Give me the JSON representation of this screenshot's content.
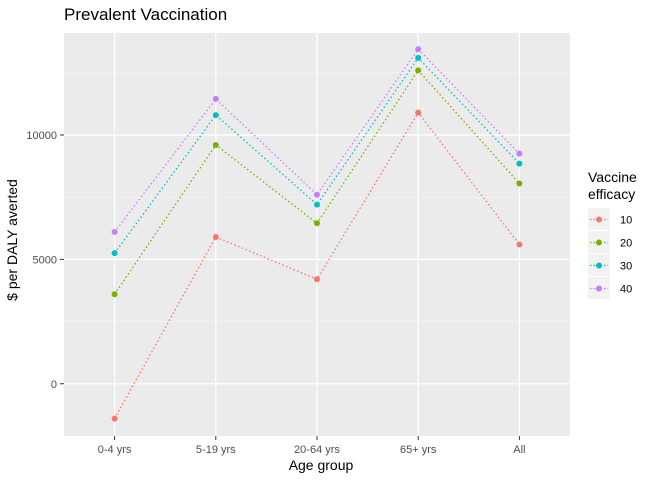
{
  "chart_data": {
    "type": "line",
    "title": "Prevalent Vaccination",
    "xlabel": "Age group",
    "ylabel": "$ per DALY averted",
    "categories": [
      "0-4 yrs",
      "5-19 yrs",
      "20-64 yrs",
      "65+ yrs",
      "All"
    ],
    "y_ticks": [
      0,
      5000,
      10000
    ],
    "y_tick_labels": [
      "0",
      "5000",
      "10000"
    ],
    "ylim": [
      -2100,
      14100
    ],
    "grid": true,
    "line_style": "dotted",
    "legend": {
      "title": "Vaccine efficacy",
      "title_lines": [
        "Vaccine",
        "efficacy"
      ],
      "position": "right"
    },
    "series": [
      {
        "name": "10",
        "color": "#F8766D",
        "values": [
          -1400,
          5900,
          4200,
          10900,
          5600
        ]
      },
      {
        "name": "20",
        "color": "#7CAE00",
        "values": [
          3600,
          9600,
          6450,
          12600,
          8050
        ]
      },
      {
        "name": "30",
        "color": "#00BFC4",
        "values": [
          5250,
          10800,
          7200,
          13100,
          8850
        ]
      },
      {
        "name": "40",
        "color": "#C77CFF",
        "values": [
          6100,
          11450,
          7600,
          13450,
          9250
        ]
      }
    ]
  }
}
